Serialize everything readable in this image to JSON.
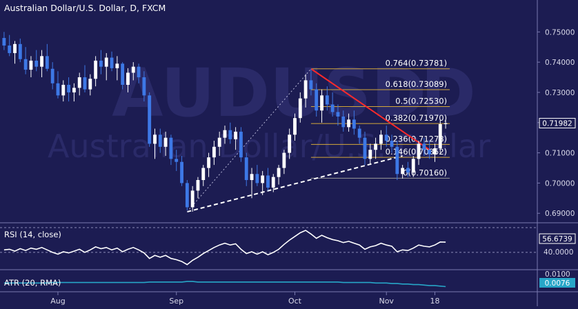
{
  "header": {
    "title": "Australian Dollar/U.S. Dollar, D, FXCM"
  },
  "watermark": {
    "symbol": "AUDUSD",
    "suffix": "D",
    "name": "Australian Dollar/U.S. Dollar"
  },
  "colors": {
    "background": "#1c1c52",
    "candle_up": "#ffffff",
    "candle_down": "#3d78e6",
    "fib_line": "#d4a83a",
    "trend_down": "#ff2a2a",
    "trend_up": "#ffffff",
    "rsi_line": "#ffffff",
    "atr_line": "#27a6c8",
    "axis_text": "#d8d8e8",
    "separator": "#7a7ab0"
  },
  "chart_data": {
    "type": "candlestick",
    "title": "Australian Dollar/U.S. Dollar, D, FXCM",
    "ylim": [
      0.688,
      0.756
    ],
    "y_ticks": [
      "0.75000",
      "0.74000",
      "0.73000",
      "0.72000",
      "0.71000",
      "0.70000",
      "0.69000"
    ],
    "x_tick_labels": [
      "Aug",
      "Sep",
      "Oct",
      "Nov",
      "18"
    ],
    "grid": false,
    "candles": [
      {
        "o": 0.748,
        "h": 0.75,
        "l": 0.744,
        "c": 0.7455
      },
      {
        "o": 0.7455,
        "h": 0.749,
        "l": 0.742,
        "c": 0.743
      },
      {
        "o": 0.743,
        "h": 0.747,
        "l": 0.7395,
        "c": 0.746
      },
      {
        "o": 0.746,
        "h": 0.7478,
        "l": 0.74,
        "c": 0.741
      },
      {
        "o": 0.741,
        "h": 0.745,
        "l": 0.736,
        "c": 0.7375
      },
      {
        "o": 0.7375,
        "h": 0.742,
        "l": 0.735,
        "c": 0.7405
      },
      {
        "o": 0.7405,
        "h": 0.744,
        "l": 0.737,
        "c": 0.7385
      },
      {
        "o": 0.7385,
        "h": 0.744,
        "l": 0.735,
        "c": 0.742
      },
      {
        "o": 0.742,
        "h": 0.746,
        "l": 0.737,
        "c": 0.7378
      },
      {
        "o": 0.7378,
        "h": 0.74,
        "l": 0.731,
        "c": 0.733
      },
      {
        "o": 0.733,
        "h": 0.737,
        "l": 0.728,
        "c": 0.729
      },
      {
        "o": 0.729,
        "h": 0.734,
        "l": 0.727,
        "c": 0.7325
      },
      {
        "o": 0.7325,
        "h": 0.735,
        "l": 0.727,
        "c": 0.73
      },
      {
        "o": 0.73,
        "h": 0.733,
        "l": 0.727,
        "c": 0.7315
      },
      {
        "o": 0.7315,
        "h": 0.7365,
        "l": 0.729,
        "c": 0.735
      },
      {
        "o": 0.735,
        "h": 0.739,
        "l": 0.73,
        "c": 0.731
      },
      {
        "o": 0.731,
        "h": 0.736,
        "l": 0.729,
        "c": 0.7345
      },
      {
        "o": 0.7345,
        "h": 0.742,
        "l": 0.732,
        "c": 0.7405
      },
      {
        "o": 0.7405,
        "h": 0.744,
        "l": 0.736,
        "c": 0.7385
      },
      {
        "o": 0.7385,
        "h": 0.743,
        "l": 0.734,
        "c": 0.7415
      },
      {
        "o": 0.7415,
        "h": 0.7435,
        "l": 0.737,
        "c": 0.738
      },
      {
        "o": 0.738,
        "h": 0.742,
        "l": 0.734,
        "c": 0.7395
      },
      {
        "o": 0.7395,
        "h": 0.74,
        "l": 0.731,
        "c": 0.7325
      },
      {
        "o": 0.7325,
        "h": 0.738,
        "l": 0.73,
        "c": 0.7365
      },
      {
        "o": 0.7365,
        "h": 0.74,
        "l": 0.734,
        "c": 0.7385
      },
      {
        "o": 0.7385,
        "h": 0.7395,
        "l": 0.733,
        "c": 0.735
      },
      {
        "o": 0.735,
        "h": 0.737,
        "l": 0.727,
        "c": 0.729
      },
      {
        "o": 0.729,
        "h": 0.73,
        "l": 0.712,
        "c": 0.713
      },
      {
        "o": 0.713,
        "h": 0.718,
        "l": 0.708,
        "c": 0.716
      },
      {
        "o": 0.716,
        "h": 0.718,
        "l": 0.71,
        "c": 0.712
      },
      {
        "o": 0.712,
        "h": 0.717,
        "l": 0.709,
        "c": 0.715
      },
      {
        "o": 0.715,
        "h": 0.716,
        "l": 0.706,
        "c": 0.708
      },
      {
        "o": 0.708,
        "h": 0.711,
        "l": 0.704,
        "c": 0.707
      },
      {
        "o": 0.707,
        "h": 0.709,
        "l": 0.699,
        "c": 0.7
      },
      {
        "o": 0.7,
        "h": 0.701,
        "l": 0.691,
        "c": 0.692
      },
      {
        "o": 0.692,
        "h": 0.699,
        "l": 0.6905,
        "c": 0.6975
      },
      {
        "o": 0.6975,
        "h": 0.702,
        "l": 0.695,
        "c": 0.701
      },
      {
        "o": 0.701,
        "h": 0.706,
        "l": 0.699,
        "c": 0.705
      },
      {
        "o": 0.705,
        "h": 0.71,
        "l": 0.702,
        "c": 0.7085
      },
      {
        "o": 0.7085,
        "h": 0.714,
        "l": 0.706,
        "c": 0.712
      },
      {
        "o": 0.712,
        "h": 0.717,
        "l": 0.709,
        "c": 0.715
      },
      {
        "o": 0.715,
        "h": 0.719,
        "l": 0.713,
        "c": 0.7175
      },
      {
        "o": 0.7175,
        "h": 0.72,
        "l": 0.713,
        "c": 0.7145
      },
      {
        "o": 0.7145,
        "h": 0.7185,
        "l": 0.711,
        "c": 0.717
      },
      {
        "o": 0.717,
        "h": 0.7185,
        "l": 0.707,
        "c": 0.7085
      },
      {
        "o": 0.7085,
        "h": 0.71,
        "l": 0.699,
        "c": 0.701
      },
      {
        "o": 0.701,
        "h": 0.705,
        "l": 0.695,
        "c": 0.703
      },
      {
        "o": 0.703,
        "h": 0.706,
        "l": 0.699,
        "c": 0.7
      },
      {
        "o": 0.7,
        "h": 0.704,
        "l": 0.696,
        "c": 0.7025
      },
      {
        "o": 0.7025,
        "h": 0.705,
        "l": 0.6975,
        "c": 0.6985
      },
      {
        "o": 0.6985,
        "h": 0.703,
        "l": 0.697,
        "c": 0.702
      },
      {
        "o": 0.702,
        "h": 0.706,
        "l": 0.6995,
        "c": 0.705
      },
      {
        "o": 0.705,
        "h": 0.711,
        "l": 0.703,
        "c": 0.71
      },
      {
        "o": 0.71,
        "h": 0.718,
        "l": 0.708,
        "c": 0.716
      },
      {
        "o": 0.716,
        "h": 0.723,
        "l": 0.714,
        "c": 0.7215
      },
      {
        "o": 0.7215,
        "h": 0.73,
        "l": 0.72,
        "c": 0.728
      },
      {
        "o": 0.728,
        "h": 0.736,
        "l": 0.725,
        "c": 0.734
      },
      {
        "o": 0.734,
        "h": 0.7378,
        "l": 0.729,
        "c": 0.731
      },
      {
        "o": 0.731,
        "h": 0.733,
        "l": 0.722,
        "c": 0.724
      },
      {
        "o": 0.724,
        "h": 0.731,
        "l": 0.72,
        "c": 0.729
      },
      {
        "o": 0.729,
        "h": 0.732,
        "l": 0.724,
        "c": 0.726
      },
      {
        "o": 0.726,
        "h": 0.73,
        "l": 0.722,
        "c": 0.7235
      },
      {
        "o": 0.7235,
        "h": 0.726,
        "l": 0.719,
        "c": 0.722
      },
      {
        "o": 0.722,
        "h": 0.724,
        "l": 0.717,
        "c": 0.7185
      },
      {
        "o": 0.7185,
        "h": 0.723,
        "l": 0.717,
        "c": 0.721
      },
      {
        "o": 0.721,
        "h": 0.724,
        "l": 0.716,
        "c": 0.718
      },
      {
        "o": 0.718,
        "h": 0.719,
        "l": 0.713,
        "c": 0.715
      },
      {
        "o": 0.715,
        "h": 0.717,
        "l": 0.706,
        "c": 0.708
      },
      {
        "o": 0.708,
        "h": 0.713,
        "l": 0.706,
        "c": 0.711
      },
      {
        "o": 0.711,
        "h": 0.715,
        "l": 0.708,
        "c": 0.713
      },
      {
        "o": 0.713,
        "h": 0.7175,
        "l": 0.711,
        "c": 0.716
      },
      {
        "o": 0.716,
        "h": 0.719,
        "l": 0.712,
        "c": 0.714
      },
      {
        "o": 0.714,
        "h": 0.716,
        "l": 0.71,
        "c": 0.712
      },
      {
        "o": 0.712,
        "h": 0.714,
        "l": 0.701,
        "c": 0.703
      },
      {
        "o": 0.703,
        "h": 0.706,
        "l": 0.7015,
        "c": 0.705
      },
      {
        "o": 0.705,
        "h": 0.707,
        "l": 0.702,
        "c": 0.7035
      },
      {
        "o": 0.7035,
        "h": 0.709,
        "l": 0.702,
        "c": 0.708
      },
      {
        "o": 0.708,
        "h": 0.714,
        "l": 0.706,
        "c": 0.713
      },
      {
        "o": 0.713,
        "h": 0.715,
        "l": 0.709,
        "c": 0.711
      },
      {
        "o": 0.711,
        "h": 0.714,
        "l": 0.708,
        "c": 0.7095
      },
      {
        "o": 0.7095,
        "h": 0.713,
        "l": 0.707,
        "c": 0.7115
      },
      {
        "o": 0.7115,
        "h": 0.721,
        "l": 0.71,
        "c": 0.7195
      },
      {
        "o": 0.7195,
        "h": 0.721,
        "l": 0.718,
        "c": 0.7198
      }
    ],
    "x_tick_positions": [
      10,
      32,
      54,
      71,
      80
    ],
    "fib_levels": [
      {
        "label": "0.764(0.73781)",
        "value": 0.73781
      },
      {
        "label": "0.618(0.73089)",
        "value": 0.73089
      },
      {
        "label": "0.5(0.72530)",
        "value": 0.7253
      },
      {
        "label": "0.382(0.71970)",
        "value": 0.7197
      },
      {
        "label": "0.236(0.71278)",
        "value": 0.71278
      },
      {
        "label": "0.146(0.70852)",
        "value": 0.70852
      },
      {
        "label": "0(0.70160)",
        "value": 0.7016
      }
    ],
    "fib_start_index": 57,
    "fib_end_index": 82,
    "current_price": {
      "label": "0.71982",
      "value": 0.71982
    },
    "trendlines": [
      {
        "kind": "resistance",
        "from": {
          "i": 57,
          "v": 0.7378
        },
        "to": {
          "i": 79,
          "v": 0.711
        }
      },
      {
        "kind": "support",
        "from": {
          "i": 34,
          "v": 0.6905
        },
        "to": {
          "i": 74,
          "v": 0.709
        }
      },
      {
        "kind": "fib-anchor",
        "from": {
          "i": 34,
          "v": 0.6905
        },
        "to": {
          "i": 57,
          "v": 0.7378
        }
      }
    ],
    "rsi": {
      "label": "RSI (14, close)",
      "value_label": "56.6739",
      "level_label": "40.0000",
      "ylim": [
        15,
        85
      ],
      "level": 40,
      "values": [
        44,
        45,
        42,
        46,
        43,
        47,
        45,
        48,
        44,
        40,
        37,
        41,
        39,
        42,
        45,
        40,
        44,
        49,
        46,
        48,
        44,
        47,
        41,
        45,
        48,
        44,
        39,
        30,
        35,
        32,
        35,
        30,
        28,
        25,
        20,
        27,
        32,
        38,
        43,
        48,
        52,
        55,
        52,
        54,
        45,
        38,
        41,
        37,
        41,
        36,
        40,
        45,
        53,
        60,
        66,
        72,
        76,
        70,
        63,
        68,
        64,
        61,
        59,
        56,
        58,
        55,
        52,
        45,
        49,
        51,
        55,
        52,
        50,
        41,
        44,
        43,
        47,
        52,
        50,
        49,
        52,
        57,
        56.7
      ]
    },
    "atr": {
      "label": "ATR (20, RMA)",
      "value_label": "0.0076",
      "level_label": "0.0100",
      "ylim": [
        0.007,
        0.0105
      ],
      "values": [
        0.0083,
        0.0083,
        0.0083,
        0.0083,
        0.0083,
        0.0083,
        0.0083,
        0.0083,
        0.0083,
        0.0084,
        0.0084,
        0.0084,
        0.0084,
        0.0084,
        0.0084,
        0.0084,
        0.0084,
        0.0084,
        0.0084,
        0.0084,
        0.0084,
        0.0084,
        0.0084,
        0.0084,
        0.0084,
        0.0084,
        0.0084,
        0.0085,
        0.0085,
        0.0085,
        0.0085,
        0.0085,
        0.0085,
        0.0085,
        0.0086,
        0.0086,
        0.0085,
        0.0085,
        0.0085,
        0.0085,
        0.0085,
        0.0085,
        0.0085,
        0.0085,
        0.0085,
        0.0085,
        0.0085,
        0.0085,
        0.0085,
        0.0085,
        0.0085,
        0.0085,
        0.0085,
        0.0085,
        0.0085,
        0.0085,
        0.0085,
        0.0085,
        0.0085,
        0.0085,
        0.0085,
        0.0085,
        0.0085,
        0.0084,
        0.0084,
        0.0084,
        0.0084,
        0.0084,
        0.0084,
        0.0083,
        0.0083,
        0.0083,
        0.0082,
        0.0082,
        0.0081,
        0.0081,
        0.008,
        0.008,
        0.0079,
        0.0078,
        0.0078,
        0.0077,
        0.0076
      ]
    }
  }
}
